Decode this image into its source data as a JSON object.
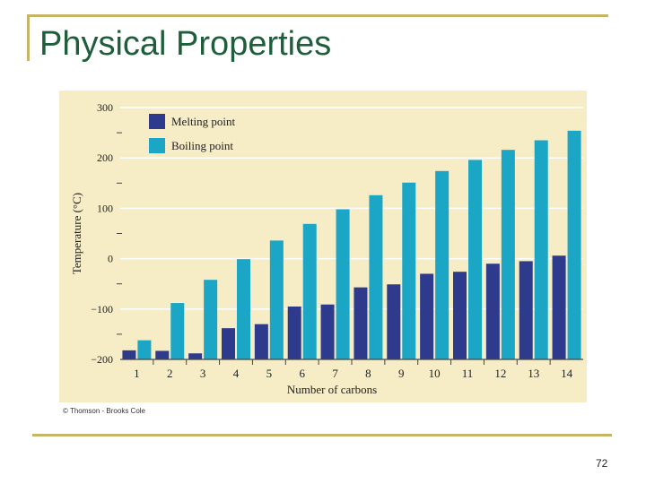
{
  "slide": {
    "title": "Physical Properties",
    "copyright": "© Thomson - Brooks Cole",
    "page_number": "72"
  },
  "colors": {
    "frame": "#c8b466",
    "title": "#1f5e3a",
    "chart_background": "#f6ecc6",
    "melting": "#2e3a8c",
    "boiling": "#1aa6c4"
  },
  "chart_data": {
    "type": "bar",
    "title": "",
    "xlabel": "Number of carbons",
    "ylabel": "Temperature (°C)",
    "categories": [
      "1",
      "2",
      "3",
      "4",
      "5",
      "6",
      "7",
      "8",
      "9",
      "10",
      "11",
      "12",
      "13",
      "14"
    ],
    "ylim": [
      -200,
      300
    ],
    "yticks": [
      300,
      200,
      100,
      0,
      -100,
      -200
    ],
    "ytick_labels": [
      "300",
      "200",
      "100",
      "0",
      "−100",
      "−200"
    ],
    "grid": true,
    "legend_position": "top-left",
    "series": [
      {
        "name": "Melting point",
        "color": "#2e3a8c",
        "values": [
          -182,
          -183,
          -188,
          -138,
          -130,
          -95,
          -91,
          -57,
          -51,
          -30,
          -26,
          -10,
          -5,
          6
        ]
      },
      {
        "name": "Boiling point",
        "color": "#1aa6c4",
        "values": [
          -162,
          -88,
          -42,
          -1,
          36,
          69,
          98,
          126,
          151,
          174,
          196,
          216,
          235,
          254
        ]
      }
    ]
  }
}
